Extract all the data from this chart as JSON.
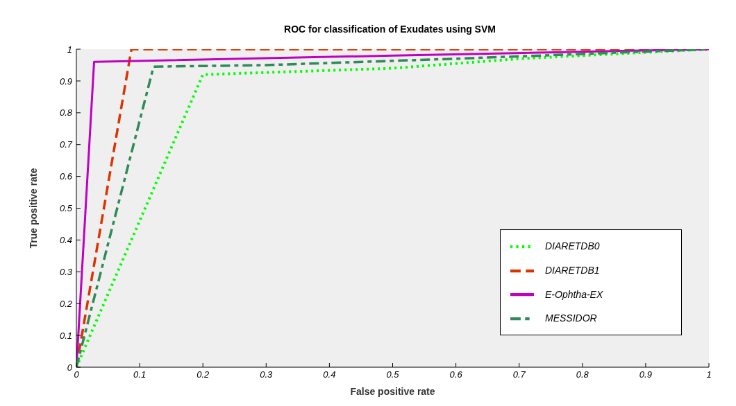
{
  "chart_data": {
    "type": "line",
    "title": "ROC for classification of Exudates using SVM",
    "xlabel": "False positive rate",
    "ylabel": "True positive rate",
    "xlim": [
      0,
      1
    ],
    "xticks": [
      0,
      0.1,
      0.2,
      0.3,
      0.4,
      0.5,
      0.6,
      0.7,
      0.8,
      0.9,
      1
    ],
    "ylim": [
      0,
      1
    ],
    "yticks": [
      0,
      0.1,
      0.2,
      0.3,
      0.4,
      0.5,
      0.6,
      0.7,
      0.8,
      0.9,
      1
    ],
    "grid": false,
    "legend": "bottom right",
    "marker": "none",
    "series": [
      {
        "name": "DIARETDB0",
        "color": "#00ff00",
        "line_style": "dotted",
        "x": [
          0,
          0.2,
          0.5,
          0.7,
          1
        ],
        "values": [
          0,
          0.92,
          0.94,
          0.97,
          1
        ]
      },
      {
        "name": "DIARETDB1",
        "color": "#dd3300",
        "line_style": "dashed",
        "x": [
          0,
          0.087,
          1
        ],
        "values": [
          0,
          1,
          1
        ]
      },
      {
        "name": "E-Ophtha-EX",
        "color": "#c000c0",
        "line_style": "solid",
        "x": [
          0,
          0.003,
          0.028,
          0.5,
          1
        ],
        "values": [
          0,
          0.1,
          0.96,
          0.98,
          1
        ]
      },
      {
        "name": "MESSIDOR",
        "color": "#2e8b57",
        "line_style": "dashdot",
        "x": [
          0,
          0.122,
          0.3,
          0.6,
          1
        ],
        "values": [
          0,
          0.945,
          0.95,
          0.97,
          1
        ]
      }
    ]
  }
}
